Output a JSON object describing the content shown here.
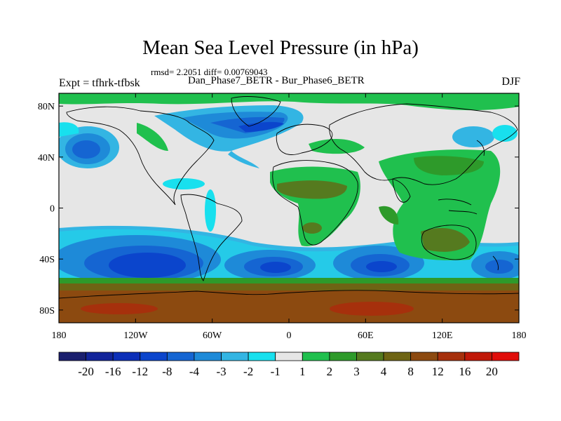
{
  "title": "Mean Sea Level Pressure (in hPa)",
  "stats": "rmsd= 2.2051 diff= 0.00769043",
  "experiment": "Expt = tfhrk-tfbsk",
  "subtitle": "Dan_Phase7_BETR - Bur_Phase6_BETR",
  "season": "DJF",
  "lat_labels": [
    "80N",
    "40N",
    "0",
    "40S",
    "80S"
  ],
  "lat_values": [
    80,
    40,
    0,
    -40,
    -80
  ],
  "lon_labels": [
    "180",
    "120W",
    "60W",
    "0",
    "60E",
    "120E",
    "180"
  ],
  "lon_values": [
    -180,
    -120,
    -60,
    0,
    60,
    120,
    180
  ],
  "colorbar": {
    "labels": [
      "-20",
      "-16",
      "-12",
      "-8",
      "-4",
      "-3",
      "-2",
      "-1",
      "1",
      "2",
      "3",
      "4",
      "8",
      "12",
      "16",
      "20"
    ],
    "colors": [
      "#1a1f6e",
      "#12249a",
      "#0c2fb8",
      "#0b45cc",
      "#1565d2",
      "#1e8ad8",
      "#33b5e3",
      "#18e0ee",
      "#e6e6e6",
      "#20c04e",
      "#2e9a2a",
      "#557a1f",
      "#6e6414",
      "#8c4a10",
      "#a6300c",
      "#c01808",
      "#e00d0a"
    ]
  },
  "colors": {
    "land_outline": "#000000",
    "background": "#e6e6e6"
  }
}
